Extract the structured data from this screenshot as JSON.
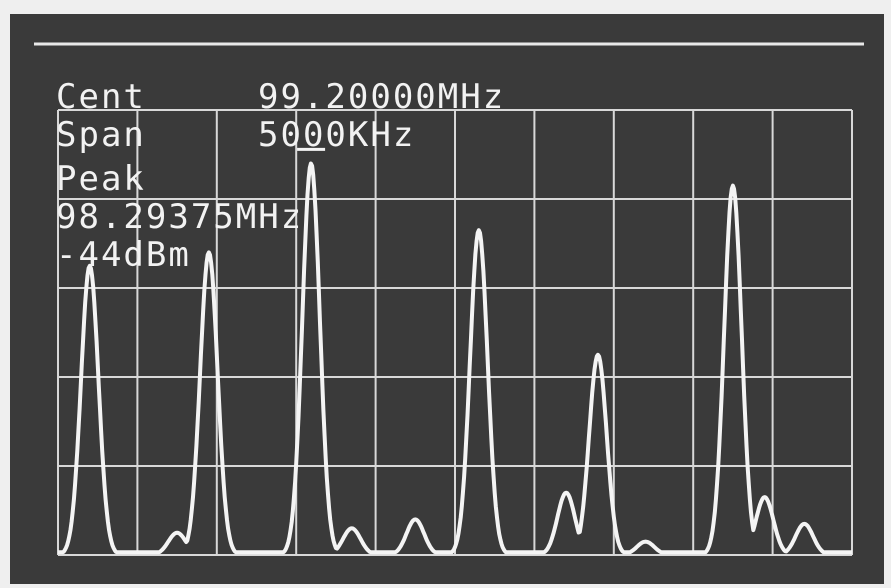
{
  "readout": {
    "cent_label": "Cent",
    "cent_value": "99.20000MHz",
    "span_label": "Span",
    "span_value": "5000KHz",
    "peak_label": "Peak",
    "peak_freq": "98.29375MHz",
    "peak_level": "-44dBm"
  },
  "colors": {
    "screen": "#3a3a3a",
    "trace": "#f4f4f4",
    "grid": "#d8d8d8"
  },
  "chart_data": {
    "type": "line",
    "title": "",
    "xlabel": "",
    "ylabel": "",
    "grid": true,
    "grid_divisions": {
      "x": 10,
      "y": 5
    },
    "x_range_mhz": [
      96.7,
      101.7
    ],
    "y_range_div": [
      0,
      5
    ],
    "peaks": [
      {
        "x": 96.9,
        "y": 3.25
      },
      {
        "x": 97.65,
        "y": 3.4
      },
      {
        "x": 98.29375,
        "y": 4.4
      },
      {
        "x": 99.35,
        "y": 3.65
      },
      {
        "x": 100.1,
        "y": 2.25
      },
      {
        "x": 100.95,
        "y": 4.15
      },
      {
        "x": 97.45,
        "y": 0.25
      },
      {
        "x": 98.55,
        "y": 0.3
      },
      {
        "x": 98.95,
        "y": 0.4
      },
      {
        "x": 99.9,
        "y": 0.7
      },
      {
        "x": 100.4,
        "y": 0.15
      },
      {
        "x": 101.15,
        "y": 0.65
      },
      {
        "x": 101.4,
        "y": 0.35
      }
    ]
  }
}
